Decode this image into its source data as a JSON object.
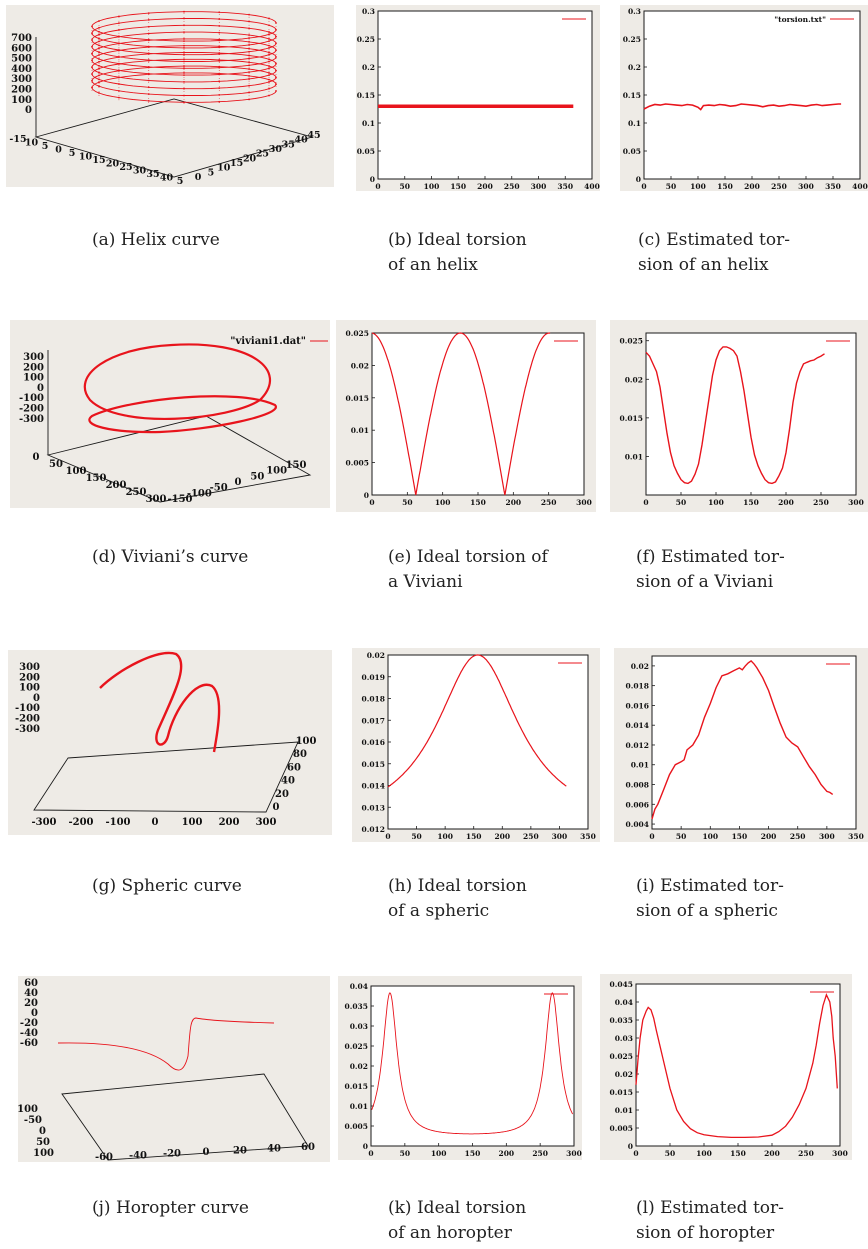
{
  "colors": {
    "curve": "#e8141c",
    "frame": "#1a1a1a",
    "panel_bg": "#eeebe6",
    "plot_bg": "#ffffff"
  },
  "chart_data": [
    {
      "id": "a",
      "type": "line3d",
      "curve": "helix",
      "x_ticks": [
        "-15",
        "10",
        "5",
        "0",
        "5",
        "10",
        "15",
        "20",
        "25",
        "30",
        "35",
        "40",
        "5"
      ],
      "y_ticks": [
        "0",
        "5",
        "10",
        "15",
        "20",
        "25",
        "30",
        "35",
        "40",
        "45"
      ],
      "z_ticks": [
        "700",
        "600",
        "500",
        "400",
        "300",
        "200",
        "100",
        "0"
      ],
      "legend": ""
    },
    {
      "id": "b",
      "type": "line",
      "series": [
        {
          "x": [
            0,
            365
          ],
          "y": [
            0.13,
            0.13
          ]
        }
      ],
      "xlim": [
        0,
        400
      ],
      "ylim": [
        0,
        0.3
      ],
      "xticks": [
        0,
        50,
        100,
        150,
        200,
        250,
        300,
        350,
        400
      ],
      "yticks": [
        0,
        0.05,
        0.1,
        0.15,
        0.2,
        0.25,
        0.3
      ],
      "xtick_labels": [
        "0",
        "50",
        "100",
        "150",
        "200",
        "250",
        "300",
        "350",
        "400"
      ],
      "ytick_labels": [
        "0",
        "0.05",
        "0.1",
        "0.15",
        "0.2",
        "0.25",
        "0.3"
      ],
      "legend": ""
    },
    {
      "id": "c",
      "type": "line",
      "series": [
        {
          "x": [
            0,
            10,
            20,
            30,
            40,
            50,
            60,
            70,
            80,
            90,
            100,
            105,
            110,
            120,
            130,
            140,
            150,
            160,
            170,
            180,
            190,
            200,
            210,
            220,
            230,
            240,
            250,
            260,
            270,
            280,
            290,
            300,
            310,
            320,
            330,
            340,
            350,
            360,
            365
          ],
          "y": [
            0.125,
            0.13,
            0.133,
            0.132,
            0.134,
            0.133,
            0.132,
            0.131,
            0.133,
            0.132,
            0.128,
            0.124,
            0.131,
            0.132,
            0.131,
            0.133,
            0.132,
            0.13,
            0.131,
            0.134,
            0.133,
            0.132,
            0.131,
            0.129,
            0.131,
            0.132,
            0.13,
            0.131,
            0.133,
            0.132,
            0.131,
            0.13,
            0.132,
            0.133,
            0.131,
            0.132,
            0.133,
            0.134,
            0.134
          ]
        }
      ],
      "xlim": [
        0,
        400
      ],
      "ylim": [
        0,
        0.3
      ],
      "xticks": [
        0,
        50,
        100,
        150,
        200,
        250,
        300,
        350,
        400
      ],
      "yticks": [
        0,
        0.05,
        0.1,
        0.15,
        0.2,
        0.25,
        0.3
      ],
      "xtick_labels": [
        "0",
        "50",
        "100",
        "150",
        "200",
        "250",
        "300",
        "350",
        "400"
      ],
      "ytick_labels": [
        "0",
        "0.05",
        "0.1",
        "0.15",
        "0.2",
        "0.25",
        "0.3"
      ],
      "legend": "\"torsion.txt\""
    },
    {
      "id": "d",
      "type": "line3d",
      "curve": "viviani",
      "z_ticks": [
        "300",
        "200",
        "100",
        "0",
        "-100",
        "-200",
        "-300"
      ],
      "x_ticks": [
        "0",
        "50",
        "100",
        "150",
        "200",
        "250",
        "300"
      ],
      "y_ticks": [
        "-150",
        "-100",
        "-50",
        "0",
        "50",
        "100",
        "150"
      ],
      "legend": "\"viviani1.dat\""
    },
    {
      "id": "e",
      "type": "line",
      "curve": "viviani_ideal",
      "xlim": [
        0,
        300
      ],
      "ylim": [
        0,
        0.025
      ],
      "xticks": [
        0,
        50,
        100,
        150,
        200,
        250,
        300
      ],
      "yticks": [
        0,
        0.005,
        0.01,
        0.015,
        0.02,
        0.025
      ],
      "xtick_labels": [
        "0",
        "50",
        "100",
        "150",
        "200",
        "250",
        "300"
      ],
      "ytick_labels": [
        "0",
        "0.005",
        "0.01",
        "0.015",
        "0.02",
        "0.025"
      ],
      "legend": ""
    },
    {
      "id": "f",
      "type": "line",
      "series": [
        {
          "x": [
            0,
            5,
            10,
            15,
            20,
            25,
            30,
            35,
            40,
            45,
            50,
            55,
            60,
            65,
            70,
            75,
            80,
            85,
            90,
            95,
            100,
            105,
            110,
            115,
            120,
            125,
            130,
            135,
            140,
            145,
            150,
            155,
            160,
            165,
            170,
            175,
            180,
            185,
            190,
            195,
            200,
            205,
            210,
            215,
            220,
            225,
            230,
            235,
            240,
            245,
            250,
            255
          ],
          "y": [
            0.0235,
            0.023,
            0.022,
            0.021,
            0.019,
            0.016,
            0.013,
            0.0105,
            0.0088,
            0.0078,
            0.007,
            0.0066,
            0.0065,
            0.0068,
            0.0077,
            0.009,
            0.0115,
            0.0145,
            0.0175,
            0.0205,
            0.0225,
            0.0237,
            0.0242,
            0.0242,
            0.024,
            0.0237,
            0.023,
            0.021,
            0.0185,
            0.0155,
            0.0125,
            0.0102,
            0.0088,
            0.0078,
            0.007,
            0.0066,
            0.0065,
            0.0067,
            0.0075,
            0.0085,
            0.0105,
            0.0135,
            0.017,
            0.0195,
            0.021,
            0.022,
            0.0222,
            0.0224,
            0.0225,
            0.0228,
            0.023,
            0.0233
          ]
        }
      ],
      "xlim": [
        0,
        300
      ],
      "ylim": [
        0.005,
        0.026
      ],
      "xticks": [
        0,
        50,
        100,
        150,
        200,
        250,
        300
      ],
      "yticks": [
        0.01,
        0.015,
        0.02,
        0.025
      ],
      "xtick_labels": [
        "0",
        "50",
        "100",
        "150",
        "200",
        "250",
        "300"
      ],
      "ytick_labels": [
        "0.01",
        "0.015",
        "0.02",
        "0.025"
      ],
      "legend": ""
    },
    {
      "id": "g",
      "type": "line3d",
      "curve": "spheric",
      "z_ticks": [
        "300",
        "200",
        "100",
        "0",
        "-100",
        "-200",
        "-300"
      ],
      "x_ticks": [
        "-300",
        "-200",
        "-100",
        "0",
        "100",
        "200",
        "300"
      ],
      "y_ticks": [
        "0",
        "20",
        "40",
        "60",
        "80",
        "100"
      ],
      "legend": ""
    },
    {
      "id": "h",
      "type": "line",
      "curve": "spheric_ideal",
      "xlim": [
        0,
        350
      ],
      "ylim": [
        0.012,
        0.02
      ],
      "xticks": [
        0,
        50,
        100,
        150,
        200,
        250,
        300,
        350
      ],
      "yticks": [
        0.012,
        0.013,
        0.014,
        0.015,
        0.016,
        0.017,
        0.018,
        0.019,
        0.02
      ],
      "xtick_labels": [
        "0",
        "50",
        "100",
        "150",
        "200",
        "250",
        "300",
        "350"
      ],
      "ytick_labels": [
        "0.012",
        "0.013",
        "0.014",
        "0.015",
        "0.016",
        "0.017",
        "0.018",
        "0.019",
        "0.02"
      ],
      "legend": ""
    },
    {
      "id": "i",
      "type": "line",
      "series": [
        {
          "x": [
            0,
            5,
            10,
            20,
            30,
            40,
            50,
            55,
            60,
            70,
            80,
            90,
            100,
            110,
            120,
            130,
            140,
            150,
            155,
            160,
            165,
            170,
            175,
            180,
            190,
            200,
            210,
            220,
            230,
            240,
            250,
            260,
            270,
            280,
            290,
            300,
            305,
            310
          ],
          "y": [
            0.0045,
            0.0055,
            0.006,
            0.0075,
            0.009,
            0.01,
            0.0103,
            0.0105,
            0.0115,
            0.012,
            0.013,
            0.0148,
            0.0162,
            0.0178,
            0.019,
            0.0192,
            0.0195,
            0.0198,
            0.0196,
            0.02,
            0.0203,
            0.0205,
            0.0202,
            0.0198,
            0.0188,
            0.0175,
            0.0158,
            0.0142,
            0.0128,
            0.0122,
            0.0118,
            0.0108,
            0.0098,
            0.009,
            0.008,
            0.0073,
            0.0072,
            0.007
          ]
        }
      ],
      "xlim": [
        0,
        350
      ],
      "ylim": [
        0.0035,
        0.021
      ],
      "xticks": [
        0,
        50,
        100,
        150,
        200,
        250,
        300,
        350
      ],
      "yticks": [
        0.004,
        0.006,
        0.008,
        0.01,
        0.012,
        0.014,
        0.016,
        0.018,
        0.02
      ],
      "xtick_labels": [
        "0",
        "50",
        "100",
        "150",
        "200",
        "250",
        "300",
        "350"
      ],
      "ytick_labels": [
        "0.004",
        "0.006",
        "0.008",
        "0.01",
        "0.012",
        "0.014",
        "0.016",
        "0.018",
        "0.02"
      ],
      "legend": ""
    },
    {
      "id": "j",
      "type": "line3d",
      "curve": "horopter",
      "z_ticks": [
        "60",
        "40",
        "20",
        "0",
        "-20",
        "-40",
        "-60"
      ],
      "y_ticks": [
        "-100",
        "-50",
        "0",
        "50",
        "100"
      ],
      "x_ticks": [
        "-60",
        "-40",
        "-20",
        "0",
        "20",
        "40",
        "60"
      ],
      "legend": ""
    },
    {
      "id": "k",
      "type": "line",
      "curve": "horopter_ideal",
      "xlim": [
        0,
        300
      ],
      "ylim": [
        0,
        0.04
      ],
      "xticks": [
        0,
        50,
        100,
        150,
        200,
        250,
        300
      ],
      "yticks": [
        0,
        0.005,
        0.01,
        0.015,
        0.02,
        0.025,
        0.03,
        0.035,
        0.04
      ],
      "xtick_labels": [
        "0",
        "50",
        "100",
        "150",
        "200",
        "250",
        "300"
      ],
      "ytick_labels": [
        "0",
        "0.005",
        "0.01",
        "0.015",
        "0.02",
        "0.025",
        "0.03",
        "0.035",
        "0.04"
      ],
      "legend": ""
    },
    {
      "id": "l",
      "type": "line",
      "series": [
        {
          "x": [
            0,
            3,
            6,
            10,
            15,
            18,
            22,
            26,
            30,
            35,
            40,
            50,
            60,
            70,
            80,
            90,
            100,
            120,
            140,
            160,
            180,
            200,
            210,
            220,
            230,
            240,
            250,
            260,
            265,
            270,
            275,
            280,
            285,
            288,
            290,
            293,
            296
          ],
          "y": [
            0.017,
            0.024,
            0.03,
            0.035,
            0.0375,
            0.0385,
            0.0378,
            0.0355,
            0.032,
            0.028,
            0.024,
            0.016,
            0.01,
            0.0068,
            0.0048,
            0.0037,
            0.0031,
            0.0026,
            0.0024,
            0.0024,
            0.0025,
            0.003,
            0.004,
            0.0055,
            0.008,
            0.0115,
            0.016,
            0.023,
            0.028,
            0.034,
            0.039,
            0.042,
            0.04,
            0.036,
            0.03,
            0.025,
            0.016
          ]
        }
      ],
      "xlim": [
        0,
        300
      ],
      "ylim": [
        0,
        0.045
      ],
      "xticks": [
        0,
        50,
        100,
        150,
        200,
        250,
        300
      ],
      "yticks": [
        0,
        0.005,
        0.01,
        0.015,
        0.02,
        0.025,
        0.03,
        0.035,
        0.04,
        0.045
      ],
      "xtick_labels": [
        "0",
        "50",
        "100",
        "150",
        "200",
        "250",
        "300"
      ],
      "ytick_labels": [
        "0",
        "0.005",
        "0.01",
        "0.015",
        "0.02",
        "0.025",
        "0.03",
        "0.035",
        "0.04",
        "0.045"
      ],
      "legend": ""
    }
  ],
  "captions": {
    "a": [
      "(a) Helix curve"
    ],
    "b": [
      "(b)  Ideal  torsion",
      "of an helix"
    ],
    "c": [
      "(c) Estimated tor-",
      "sion of an helix"
    ],
    "d": [
      "(d) Viviani’s curve"
    ],
    "e": [
      "(e) Ideal torsion of",
      "a Viviani"
    ],
    "f": [
      "(f)  Estimated tor-",
      "sion of a Viviani"
    ],
    "g": [
      "(g) Spheric curve"
    ],
    "h": [
      "(h)  Ideal  torsion",
      "of a spheric"
    ],
    "i": [
      "(i)  Estimated tor-",
      "sion of a spheric"
    ],
    "j": [
      "(j) Horopter curve"
    ],
    "k": [
      "(k)  Ideal  torsion",
      "of an horopter"
    ],
    "l": [
      "(l) Estimated tor-",
      "sion of horopter"
    ]
  }
}
